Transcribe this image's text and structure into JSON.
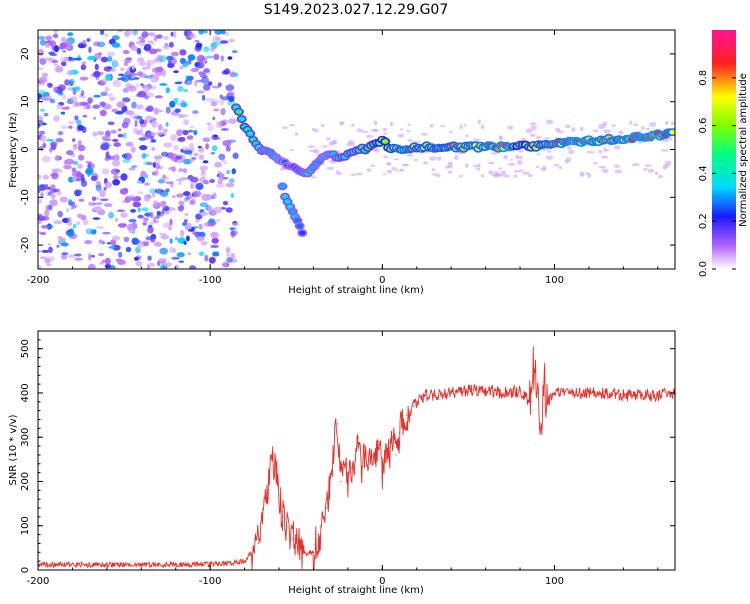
{
  "title": "S149.2023.027.12.29.G07",
  "chart_data": [
    {
      "type": "heatmap",
      "xlabel": "Height of straight line (km)",
      "ylabel": "Frequency (Hz)",
      "xlim": [
        -200,
        170
      ],
      "ylim": [
        -25,
        25
      ],
      "xticks": [
        -200,
        -100,
        0,
        100
      ],
      "xtick_labels": [
        "-200",
        "-100",
        "0",
        "100"
      ],
      "yticks": [
        -20,
        -10,
        0,
        10,
        20
      ],
      "ytick_labels": [
        "-20",
        "-10",
        "0",
        "10",
        "20"
      ],
      "colorbar": {
        "label": "Normalized spectral amplitude",
        "range": [
          0,
          1
        ],
        "ticks": [
          0,
          0.2,
          0.4,
          0.6,
          0.8
        ],
        "tick_labels": [
          "0.0",
          "0.2",
          "0.4",
          "0.6",
          "0.8"
        ]
      },
      "ridge": [
        {
          "x": -85,
          "f": 9,
          "a": 0.45
        },
        {
          "x": -80,
          "f": 5,
          "a": 0.5
        },
        {
          "x": -75,
          "f": 2,
          "a": 0.45
        },
        {
          "x": -70,
          "f": 0,
          "a": 0.4
        },
        {
          "x": -65,
          "f": -1,
          "a": 0.35
        },
        {
          "x": -60,
          "f": -2,
          "a": 0.3
        },
        {
          "x": -55,
          "f": -3,
          "a": 0.25
        },
        {
          "x": -50,
          "f": -4,
          "a": 0.3
        },
        {
          "x": -45,
          "f": -5,
          "a": 0.35
        },
        {
          "x": -40,
          "f": -4,
          "a": 0.35
        },
        {
          "x": -35,
          "f": -2,
          "a": 0.3
        },
        {
          "x": -30,
          "f": -1,
          "a": 0.35
        },
        {
          "x": -25,
          "f": -2,
          "a": 0.4
        },
        {
          "x": -20,
          "f": -1,
          "a": 0.45
        },
        {
          "x": -15,
          "f": 0,
          "a": 0.45
        },
        {
          "x": -10,
          "f": 0,
          "a": 0.5
        },
        {
          "x": -5,
          "f": 1,
          "a": 0.55
        },
        {
          "x": 0,
          "f": 2,
          "a": 0.6
        },
        {
          "x": 5,
          "f": 0,
          "a": 0.7
        },
        {
          "x": 10,
          "f": 0,
          "a": 0.8
        },
        {
          "x": 20,
          "f": 0.5,
          "a": 0.75
        },
        {
          "x": 40,
          "f": 0.5,
          "a": 0.75
        },
        {
          "x": 60,
          "f": 0.5,
          "a": 0.8
        },
        {
          "x": 75,
          "f": 0.5,
          "a": 0.85
        },
        {
          "x": 80,
          "f": 1,
          "a": 0.5
        },
        {
          "x": 85,
          "f": 0.5,
          "a": 0.7
        },
        {
          "x": 95,
          "f": 1,
          "a": 0.75
        },
        {
          "x": 110,
          "f": 1.5,
          "a": 0.85
        },
        {
          "x": 130,
          "f": 2,
          "a": 0.8
        },
        {
          "x": 145,
          "f": 2.5,
          "a": 0.85
        },
        {
          "x": 160,
          "f": 3,
          "a": 0.85
        },
        {
          "x": 170,
          "f": 3.5,
          "a": 0.8
        }
      ],
      "branch": [
        {
          "x": -58,
          "f": -8,
          "a": 0.35
        },
        {
          "x": -55,
          "f": -11,
          "a": 0.4
        },
        {
          "x": -52,
          "f": -13,
          "a": 0.35
        },
        {
          "x": -48,
          "f": -16,
          "a": 0.3
        },
        {
          "x": -45,
          "f": -19,
          "a": 0.25
        }
      ]
    },
    {
      "type": "line",
      "xlabel": "Height of straight line (km)",
      "ylabel": "SNR (10 * v/v)",
      "xlim": [
        -200,
        170
      ],
      "ylim": [
        0,
        540
      ],
      "xticks": [
        -200,
        -100,
        0,
        100
      ],
      "xtick_labels": [
        "-200",
        "-100",
        "0",
        "100"
      ],
      "yticks": [
        0,
        100,
        200,
        300,
        400,
        500
      ],
      "ytick_labels": [
        "0",
        "100",
        "200",
        "300",
        "400",
        "500"
      ],
      "series": [
        {
          "name": "SNR",
          "color": "#e8302a",
          "x": [
            -200,
            -160,
            -120,
            -90,
            -80,
            -72,
            -68,
            -64,
            -62,
            -60,
            -58,
            -56,
            -52,
            -48,
            -44,
            -40,
            -36,
            -32,
            -28,
            -26,
            -24,
            -22,
            -20,
            -18,
            -16,
            -14,
            -12,
            -10,
            -8,
            -6,
            -4,
            -2,
            0,
            2,
            4,
            6,
            8,
            10,
            12,
            14,
            16,
            18,
            20,
            25,
            30,
            40,
            50,
            60,
            70,
            80,
            85,
            88,
            90,
            92,
            94,
            96,
            100,
            110,
            120,
            130,
            140,
            150,
            160,
            170
          ],
          "y": [
            12,
            12,
            12,
            14,
            20,
            60,
            160,
            250,
            230,
            170,
            120,
            90,
            70,
            50,
            35,
            40,
            80,
            140,
            280,
            330,
            200,
            240,
            200,
            230,
            220,
            300,
            200,
            280,
            230,
            260,
            240,
            290,
            220,
            270,
            260,
            300,
            260,
            310,
            340,
            350,
            360,
            370,
            380,
            395,
            395,
            400,
            405,
            405,
            400,
            405,
            380,
            460,
            400,
            330,
            430,
            380,
            400,
            400,
            400,
            400,
            395,
            395,
            395,
            400
          ]
        }
      ]
    }
  ]
}
